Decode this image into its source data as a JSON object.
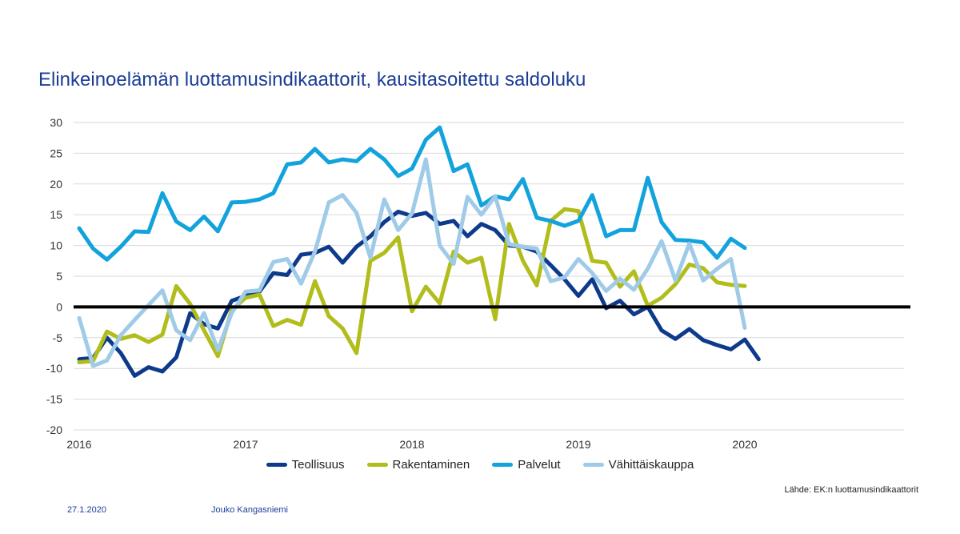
{
  "chart_data": {
    "type": "line",
    "title": "Elinkeinoelämän luottamusindikaattorit, kausitasoitettu saldoluku",
    "xlabel": "",
    "ylabel": "",
    "ylim": [
      -20,
      30
    ],
    "yticks": [
      "30",
      "25",
      "20",
      "15",
      "10",
      "5",
      "0",
      "-5",
      "-10",
      "-15",
      "-20"
    ],
    "ytick_values": [
      30,
      25,
      20,
      15,
      10,
      5,
      0,
      -5,
      -10,
      -15,
      -20
    ],
    "xticks": [
      "2016",
      "2017",
      "2018",
      "2019",
      "2020"
    ],
    "xtick_months": [
      0,
      12,
      24,
      36,
      48
    ],
    "x_month_max": 59,
    "legend_position": "bottom",
    "series": [
      {
        "name": "Teollisuus",
        "color": "#0e3a8c",
        "values": [
          -8.5,
          -8.3,
          -5,
          -7.5,
          -11.2,
          -9.8,
          -10.5,
          -8.2,
          -1,
          -2.8,
          -3.5,
          1,
          1.8,
          2.5,
          5.5,
          5.2,
          8.5,
          8.8,
          9.8,
          7.2,
          9.8,
          11.5,
          13.8,
          15.5,
          14.8,
          15.3,
          13.5,
          14,
          11.5,
          13.5,
          12.5,
          10,
          9.8,
          9,
          6.8,
          4.5,
          1.8,
          4.5,
          -0.2,
          1,
          -1.2,
          0,
          -3.8,
          -5.2,
          -3.6,
          -5.4,
          -6.2,
          -6.9,
          -5.3,
          -8.5
        ]
      },
      {
        "name": "Rakentaminen",
        "color": "#b1bd1b",
        "values": [
          -9,
          -8.8,
          -4,
          -5.2,
          -4.6,
          -5.7,
          -4.5,
          3.4,
          0.5,
          -3.8,
          -8,
          -0.5,
          1.5,
          2,
          -3.1,
          -2.1,
          -2.9,
          4.2,
          -1.5,
          -3.5,
          -7.5,
          7.5,
          8.8,
          11.3,
          -0.7,
          3.3,
          0.6,
          9,
          7.2,
          8,
          -2,
          13.5,
          7.5,
          3.5,
          14,
          15.9,
          15.6,
          7.5,
          7.2,
          3.3,
          5.8,
          0.2,
          1.5,
          3.7,
          6.9,
          6.3,
          4,
          3.6,
          3.4
        ]
      },
      {
        "name": "Palvelut",
        "color": "#13a3dc",
        "values": [
          12.8,
          9.5,
          7.7,
          9.8,
          12.3,
          12.2,
          18.5,
          13.9,
          12.5,
          14.7,
          12.3,
          17,
          17.1,
          17.5,
          18.5,
          23.2,
          23.5,
          25.7,
          23.5,
          24,
          23.7,
          25.7,
          24,
          21.3,
          22.5,
          27.2,
          29.2,
          22.1,
          23.2,
          16.5,
          18,
          17.5,
          20.8,
          14.5,
          14,
          13.2,
          14,
          18.2,
          11.5,
          12.5,
          12.5,
          21,
          13.8,
          10.9,
          10.8,
          10.5,
          8,
          11.1,
          9.6
        ]
      },
      {
        "name": "Vähittäiskauppa",
        "color": "#9fcbe9",
        "values": [
          -1.8,
          -9.6,
          -8.7,
          -4.6,
          -2.1,
          0.3,
          2.7,
          -3.8,
          -5.4,
          -1,
          -7,
          -1,
          2.5,
          2.7,
          7.3,
          7.8,
          3.8,
          9,
          17,
          18.2,
          15.3,
          8,
          17.5,
          12.5,
          15.2,
          24,
          10,
          7,
          17.9,
          15,
          18,
          10.2,
          9.8,
          9.5,
          4.2,
          4.8,
          7.8,
          5.5,
          2.6,
          4.6,
          2.8,
          6.2,
          10.7,
          4.3,
          10.3,
          4.3,
          6.2,
          7.8,
          -3.4
        ]
      }
    ]
  },
  "source": "Lähde: EK:n luottamusindikaattorit",
  "footer": {
    "date": "27.1.2020",
    "author": "Jouko Kangasniemi"
  },
  "colors": {
    "title": "#1a3d96",
    "zero_line": "#000000",
    "grid": "#d9d9d9"
  }
}
